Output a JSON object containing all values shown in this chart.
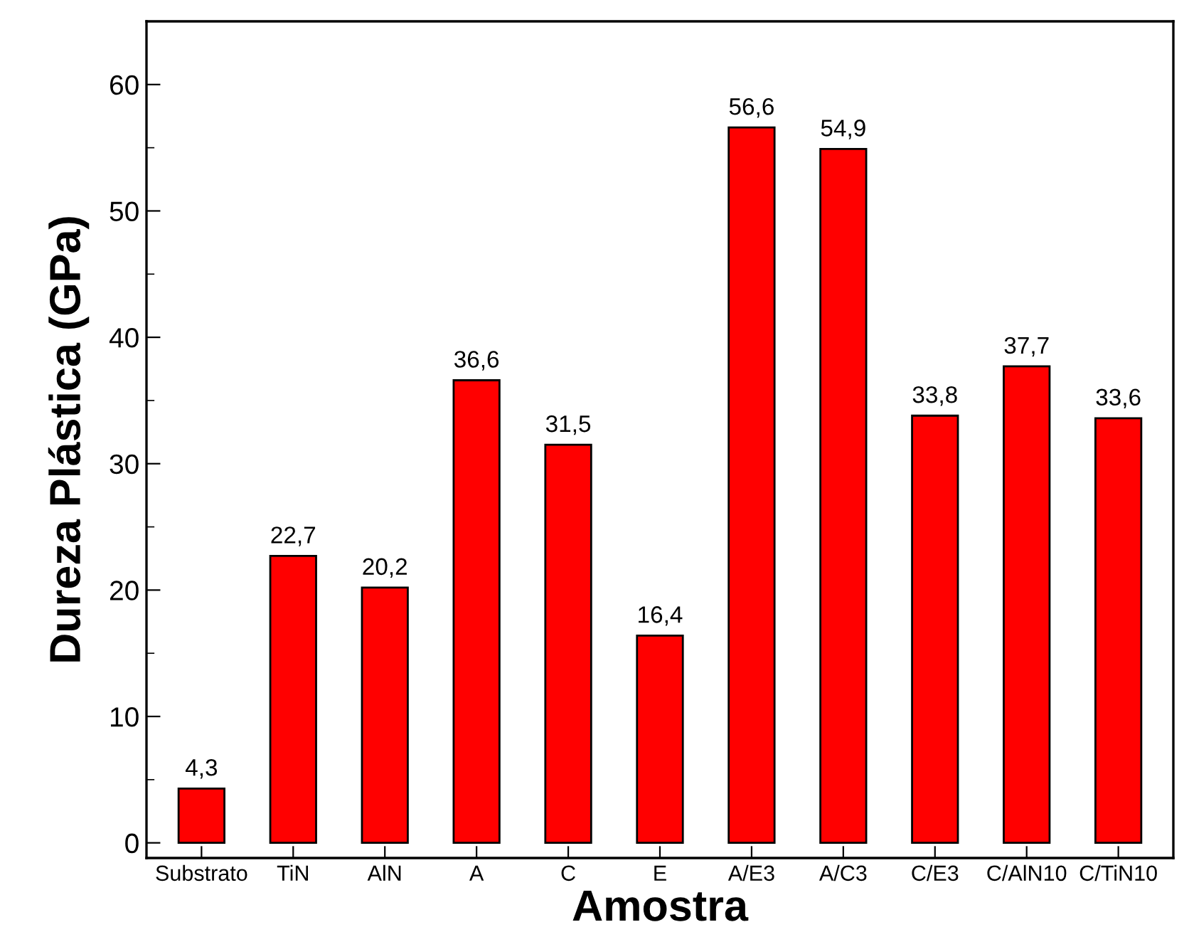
{
  "chart_data": {
    "type": "bar",
    "xlabel": "Amostra",
    "ylabel": "Dureza Plástica (GPa)",
    "categories": [
      "Substrato",
      "TiN",
      "AlN",
      "A",
      "C",
      "E",
      "A/E3",
      "A/C3",
      "C/E3",
      "C/AlN10",
      "C/TiN10"
    ],
    "values": [
      4.3,
      22.7,
      20.2,
      36.6,
      31.5,
      16.4,
      56.6,
      54.9,
      33.8,
      37.7,
      33.6
    ],
    "value_labels": [
      "4,3",
      "22,7",
      "20,2",
      "36,6",
      "31,5",
      "16,4",
      "56,6",
      "54,9",
      "33,8",
      "37,7",
      "33,6"
    ],
    "color": "#ff0000",
    "ylim": [
      -1.2,
      65
    ],
    "yticks": [
      0,
      {
        "value": 5,
        "label": null
      },
      10,
      {
        "value": 15,
        "label": null
      },
      20,
      {
        "value": 25,
        "label": null
      },
      30,
      {
        "value": 35,
        "label": null
      },
      40,
      {
        "value": 45,
        "label": null
      },
      50,
      {
        "value": 55,
        "label": null
      },
      60
    ],
    "grid": false
  }
}
